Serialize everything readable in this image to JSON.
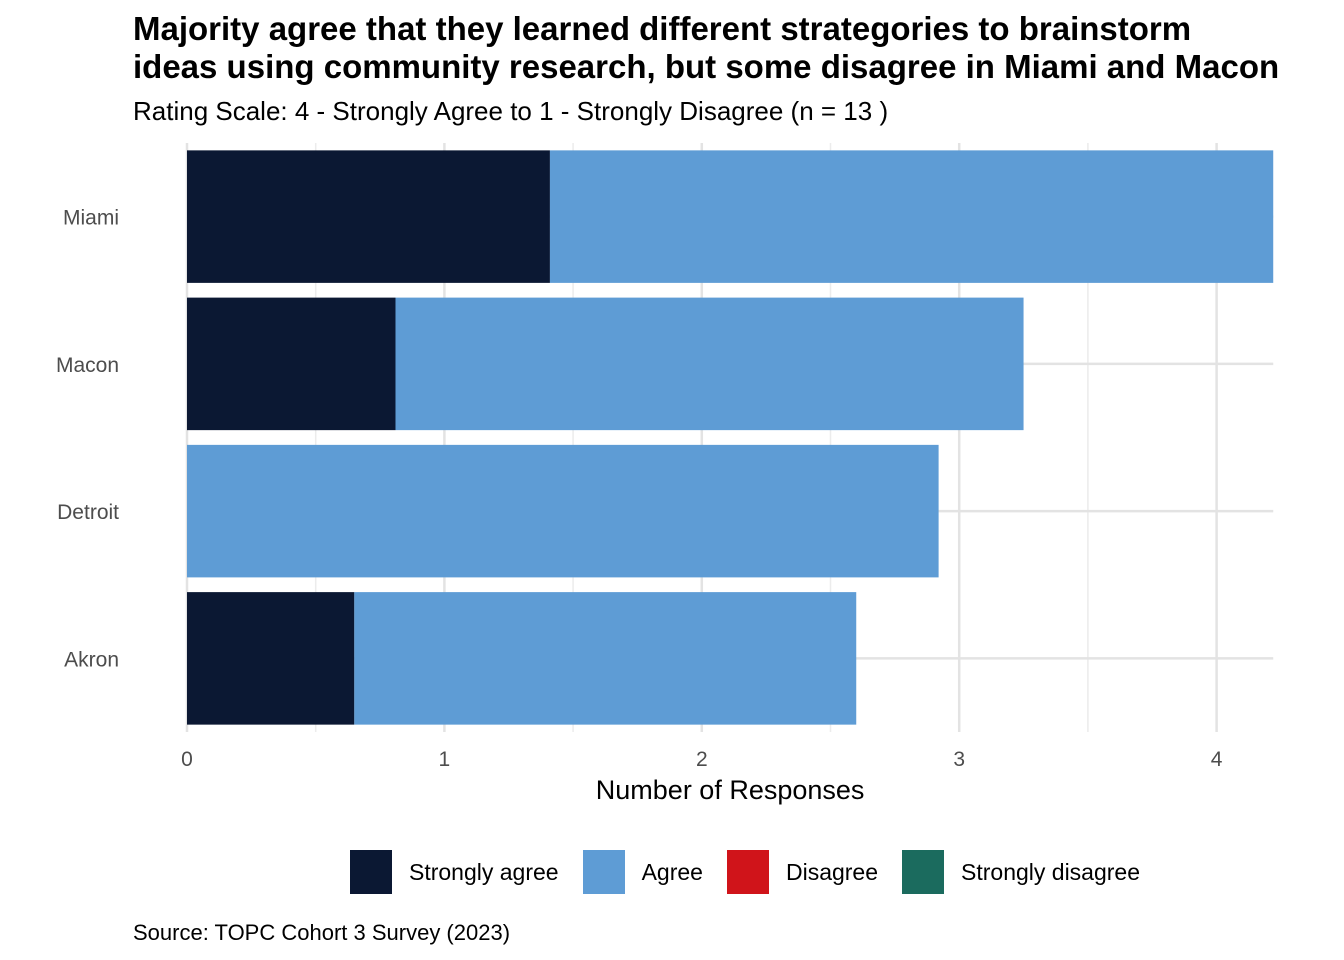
{
  "chart_data": {
    "type": "bar",
    "orientation": "horizontal",
    "stacked": true,
    "title_lines": [
      "Majority agree that they learned different strategories to brainstorm",
      "ideas using community research, but some disagree in Miami and Macon"
    ],
    "subtitle": "Rating Scale: 4 - Strongly Agree to 1 - Strongly Disagree (n = 13 )",
    "caption": "Source: TOPC Cohort 3 Survey (2023)",
    "xlabel": "Number of Responses",
    "ylabel": "",
    "xlim": [
      0,
      4.22
    ],
    "x_ticks": [
      0,
      1,
      2,
      3,
      4
    ],
    "categories": [
      "Miami",
      "Macon",
      "Detroit",
      "Akron"
    ],
    "series": [
      {
        "name": "Strongly agree",
        "color": "#0b1833",
        "values": [
          1.41,
          0.81,
          0,
          0.65
        ]
      },
      {
        "name": "Agree",
        "color": "#5e9cd5",
        "values": [
          2.81,
          2.44,
          2.92,
          1.95
        ]
      },
      {
        "name": "Disagree",
        "color": "#d0141a",
        "values": [
          0,
          0,
          0,
          0
        ]
      },
      {
        "name": "Strongly disagree",
        "color": "#1b6b5e",
        "values": [
          0,
          0,
          0,
          0
        ]
      }
    ],
    "legend_position": "bottom",
    "grid": true
  }
}
